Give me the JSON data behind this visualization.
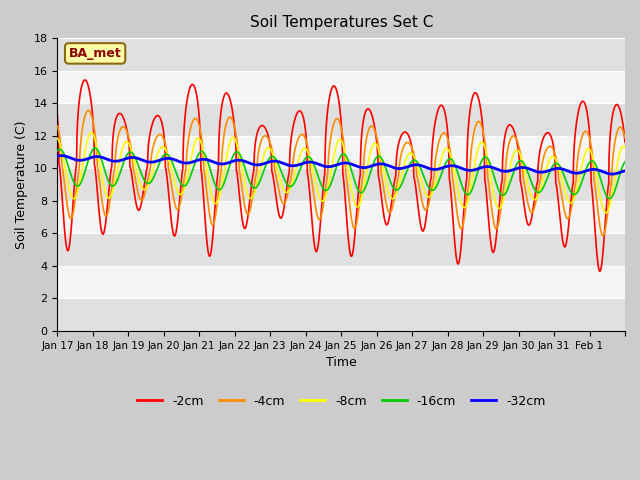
{
  "title": "Soil Temperatures Set C",
  "xlabel": "Time",
  "ylabel": "Soil Temperature (C)",
  "ylim": [
    0,
    18
  ],
  "label_text": "BA_met",
  "legend_labels": [
    "-2cm",
    "-4cm",
    "-8cm",
    "-16cm",
    "-32cm"
  ],
  "line_colors": [
    "#ff0000",
    "#ff8c00",
    "#ffff00",
    "#00cc00",
    "#0000ff"
  ],
  "bg_bands": [
    "#e0e0e0",
    "#f5f5f5"
  ],
  "xtick_labels": [
    "Jan 17",
    "Jan 18",
    "Jan 19",
    "Jan 20",
    "Jan 21",
    "Jan 22",
    "Jan 23",
    "Jan 24",
    "Jan 25",
    "Jan 26",
    "Jan 27",
    "Jan 28",
    "Jan 29",
    "Jan 30",
    "Jan 31",
    "Feb 1"
  ],
  "line_widths": [
    1.2,
    1.2,
    1.2,
    1.2,
    2.0
  ],
  "n_days": 16
}
